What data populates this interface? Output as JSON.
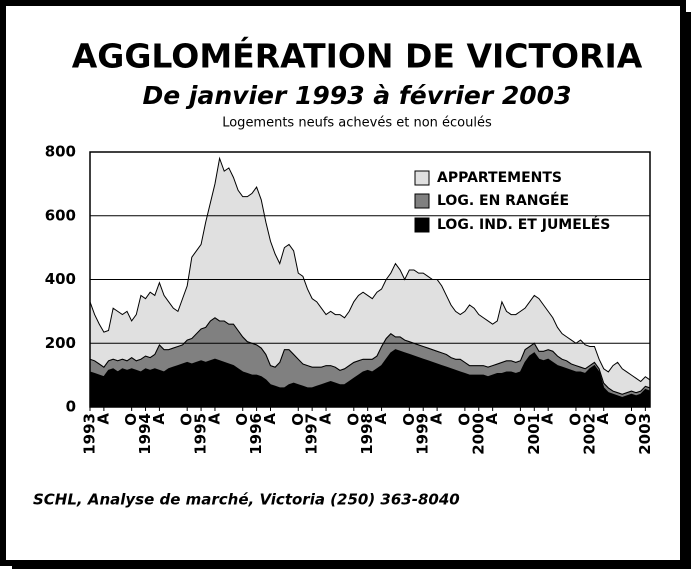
{
  "chart_data": {
    "type": "stacked_area",
    "title": "AGGLOMÉRATION DE VICTORIA",
    "subtitle": "De janvier 1993 à février 2003",
    "y_label": "Logements neufs achevés et non écoulés",
    "footer": "SCHL, Analyse de marché, Victoria (250) 363-8040",
    "categories": [
      "1993",
      null,
      null,
      "A",
      null,
      null,
      null,
      null,
      null,
      "O",
      null,
      null,
      "1994",
      null,
      null,
      "A",
      null,
      null,
      null,
      null,
      null,
      "O",
      null,
      null,
      "1995",
      null,
      null,
      "A",
      null,
      null,
      null,
      null,
      null,
      "O",
      null,
      null,
      "1996",
      null,
      null,
      "A",
      null,
      null,
      null,
      null,
      null,
      "O",
      null,
      null,
      "1997",
      null,
      null,
      "A",
      null,
      null,
      null,
      null,
      null,
      "O",
      null,
      null,
      "1998",
      null,
      null,
      "A",
      null,
      null,
      null,
      null,
      null,
      "O",
      null,
      null,
      "1999",
      null,
      null,
      "A",
      null,
      null,
      null,
      null,
      null,
      "O",
      null,
      null,
      "2000",
      null,
      null,
      "A",
      null,
      null,
      null,
      null,
      null,
      "O",
      null,
      null,
      "2001",
      null,
      null,
      "A",
      null,
      null,
      null,
      null,
      null,
      "O",
      null,
      null,
      "2002",
      null,
      null,
      "A",
      null,
      null,
      null,
      null,
      null,
      "O",
      null,
      null,
      "2003",
      null
    ],
    "series": [
      {
        "name": "LOG. IND. ET JUMELÉS",
        "color": "#000000",
        "values": [
          110,
          105,
          100,
          95,
          115,
          120,
          110,
          120,
          115,
          120,
          115,
          110,
          120,
          115,
          120,
          115,
          110,
          120,
          125,
          130,
          135,
          140,
          135,
          140,
          145,
          140,
          145,
          150,
          145,
          140,
          135,
          130,
          120,
          110,
          105,
          100,
          100,
          95,
          85,
          70,
          65,
          60,
          60,
          70,
          75,
          70,
          65,
          60,
          60,
          65,
          70,
          75,
          80,
          75,
          70,
          70,
          80,
          90,
          100,
          110,
          115,
          110,
          120,
          130,
          150,
          170,
          180,
          175,
          170,
          165,
          160,
          155,
          150,
          145,
          140,
          135,
          130,
          125,
          120,
          115,
          110,
          105,
          100,
          100,
          100,
          100,
          95,
          100,
          105,
          105,
          110,
          110,
          105,
          110,
          140,
          160,
          170,
          150,
          145,
          150,
          140,
          130,
          125,
          120,
          115,
          110,
          110,
          105,
          120,
          130,
          110,
          60,
          45,
          40,
          35,
          30,
          35,
          40,
          35,
          40,
          55,
          50
        ]
      },
      {
        "name": "LOG. EN RANGÉE",
        "color": "#808080",
        "values": [
          40,
          40,
          35,
          30,
          30,
          30,
          35,
          30,
          30,
          35,
          30,
          40,
          40,
          40,
          45,
          80,
          70,
          60,
          60,
          60,
          60,
          70,
          80,
          90,
          100,
          110,
          125,
          130,
          125,
          130,
          125,
          130,
          120,
          110,
          100,
          100,
          95,
          90,
          80,
          60,
          60,
          80,
          120,
          110,
          90,
          80,
          70,
          70,
          65,
          60,
          55,
          55,
          50,
          50,
          45,
          50,
          50,
          50,
          45,
          40,
          35,
          40,
          40,
          60,
          65,
          60,
          40,
          45,
          40,
          40,
          40,
          40,
          40,
          40,
          40,
          40,
          40,
          40,
          35,
          35,
          40,
          35,
          30,
          30,
          30,
          30,
          30,
          30,
          30,
          35,
          35,
          35,
          35,
          35,
          40,
          30,
          30,
          25,
          30,
          30,
          35,
          30,
          25,
          25,
          20,
          20,
          15,
          15,
          10,
          10,
          10,
          15,
          15,
          10,
          10,
          10,
          10,
          10,
          10,
          10,
          10,
          10
        ]
      },
      {
        "name": "APPARTEMENTS",
        "color": "#e0e0e0",
        "values": [
          180,
          145,
          125,
          110,
          95,
          160,
          155,
          140,
          155,
          115,
          145,
          200,
          180,
          205,
          185,
          195,
          170,
          150,
          125,
          110,
          145,
          170,
          255,
          260,
          265,
          330,
          370,
          420,
          510,
          470,
          490,
          460,
          440,
          440,
          455,
          470,
          495,
          465,
          415,
          390,
          355,
          310,
          320,
          330,
          325,
          270,
          275,
          240,
          215,
          205,
          185,
          160,
          170,
          165,
          175,
          160,
          170,
          190,
          205,
          210,
          200,
          190,
          200,
          180,
          185,
          190,
          230,
          210,
          190,
          225,
          230,
          225,
          230,
          225,
          220,
          225,
          210,
          185,
          165,
          150,
          140,
          160,
          190,
          180,
          160,
          150,
          145,
          130,
          135,
          190,
          155,
          145,
          150,
          155,
          130,
          140,
          150,
          165,
          145,
          120,
          105,
          90,
          80,
          75,
          75,
          70,
          85,
          75,
          60,
          50,
          30,
          45,
          50,
          80,
          95,
          80,
          65,
          50,
          45,
          30,
          30,
          25
        ]
      }
    ],
    "ylim": [
      0,
      800
    ],
    "yticks": [
      0,
      200,
      400,
      600,
      800
    ],
    "grid": true,
    "legend": "upper right"
  }
}
